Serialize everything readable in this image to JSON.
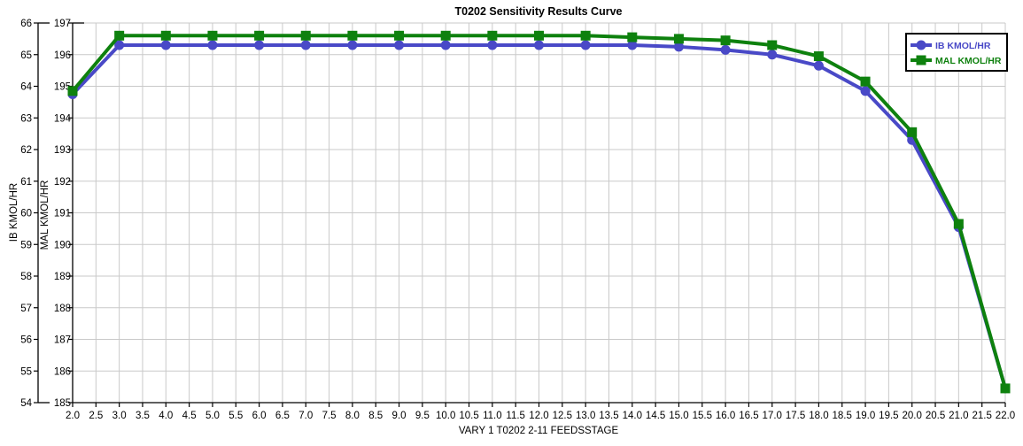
{
  "chart_data": {
    "type": "line",
    "title": "T0202 Sensitivity Results Curve",
    "xlabel": "VARY  1 T0202 2-11 FEEDSSTAGE",
    "x": [
      2,
      3,
      4,
      5,
      6,
      7,
      8,
      9,
      10,
      11,
      12,
      13,
      14,
      15,
      16,
      17,
      18,
      19,
      20,
      21,
      22
    ],
    "series": [
      {
        "name": "IB KMOL/HR",
        "yaxis": "y_ib",
        "color": "#4949c7",
        "marker": "circle",
        "values": [
          63.75,
          65.3,
          65.3,
          65.3,
          65.3,
          65.3,
          65.3,
          65.3,
          65.3,
          65.3,
          65.3,
          65.3,
          65.3,
          65.25,
          65.15,
          65.0,
          64.65,
          63.85,
          62.3,
          59.55,
          54.45
        ]
      },
      {
        "name": "MAL KMOL/HR",
        "yaxis": "y_mal",
        "color": "#0e810e",
        "marker": "square",
        "values": [
          194.85,
          196.6,
          196.6,
          196.6,
          196.6,
          196.6,
          196.6,
          196.6,
          196.6,
          196.6,
          196.6,
          196.6,
          196.55,
          196.5,
          196.45,
          196.3,
          195.95,
          195.15,
          193.55,
          190.65,
          185.45
        ]
      }
    ],
    "axes": {
      "x": {
        "min": 2.0,
        "max": 22.0,
        "tick_step": 0.5,
        "decimals": 1
      },
      "y_ib": {
        "label": "IB KMOL/HR",
        "min": 54,
        "max": 66,
        "tick_step": 1
      },
      "y_mal": {
        "label": "MAL KMOL/HR",
        "min": 185,
        "max": 197,
        "tick_step": 1
      }
    },
    "legend": {
      "position": "top-right",
      "entries": [
        "IB KMOL/HR",
        "MAL KMOL/HR"
      ]
    },
    "grid": true,
    "colors": {
      "grid": "#c9c9c9",
      "axis": "#000000",
      "background": "#ffffff",
      "text": "#000000"
    }
  }
}
